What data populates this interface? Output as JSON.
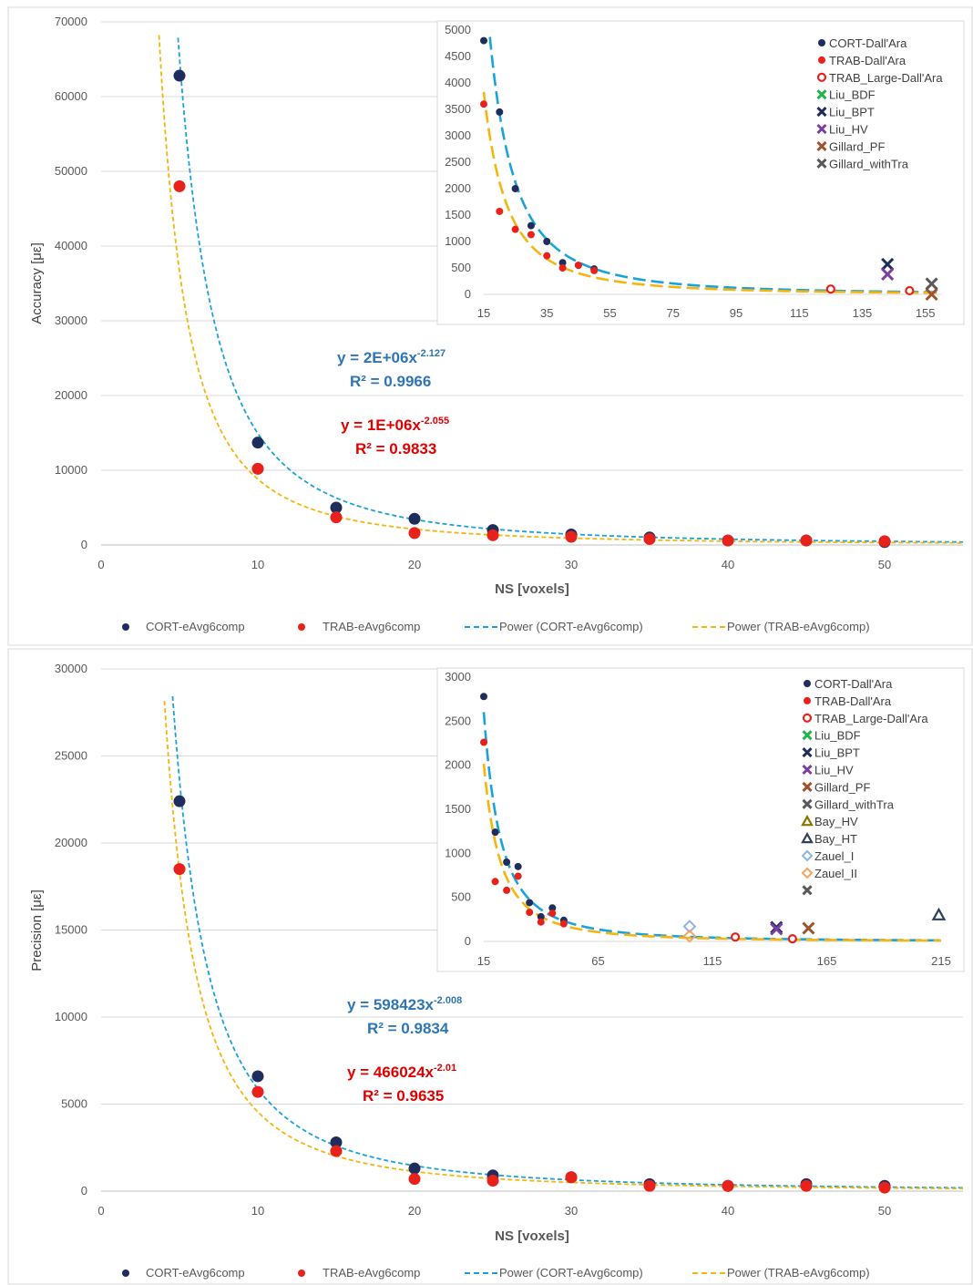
{
  "chart_data": [
    {
      "type": "scatter",
      "xlabel": "NS [voxels]",
      "ylabel": "Accuracy [με]",
      "xlim": [
        0,
        55
      ],
      "ylim": [
        0,
        70000
      ],
      "xticks": [
        0,
        10,
        20,
        30,
        40,
        50
      ],
      "yticks": [
        0,
        10000,
        20000,
        30000,
        40000,
        50000,
        60000,
        70000
      ],
      "grid": true,
      "legend_position": "bottom",
      "series": [
        {
          "name": "CORT-eAvg6comp",
          "color": "#1f2d5c",
          "marker": "circle",
          "x": [
            5,
            10,
            15,
            20,
            25,
            30,
            35,
            40,
            45,
            50
          ],
          "y": [
            62800,
            13700,
            5000,
            3500,
            2000,
            1400,
            1000,
            600,
            600,
            400
          ]
        },
        {
          "name": "TRAB-eAvg6comp",
          "color": "#e8221b",
          "marker": "circle",
          "x": [
            5,
            10,
            15,
            20,
            25,
            30,
            35,
            40,
            45,
            50
          ],
          "y": [
            48000,
            10200,
            3700,
            1600,
            1300,
            1100,
            800,
            600,
            600,
            500
          ]
        }
      ],
      "trendlines": [
        {
          "name": "Power (CORT-eAvg6comp)",
          "color": "#1aa3d9",
          "a": 2000000,
          "b": -2.127
        },
        {
          "name": "Power (TRAB-eAvg6comp)",
          "color": "#f5b50f",
          "a": 1000000,
          "b": -2.055
        }
      ],
      "equations": [
        {
          "line1": "y = 2E+06x",
          "exp": "-2.127",
          "line2": "R² = 0.9966",
          "color": "#2e75b6"
        },
        {
          "line1": "y = 1E+06x",
          "exp": "-2.055",
          "line2": "R² = 0.9833",
          "color": "#e00000"
        }
      ],
      "legend": [
        "CORT-eAvg6comp",
        "TRAB-eAvg6comp",
        "Power (CORT-eAvg6comp)",
        "Power (TRAB-eAvg6comp)"
      ],
      "inset": {
        "xlim": [
          15,
          160
        ],
        "ylim": [
          0,
          5000
        ],
        "xticks": [
          15,
          35,
          55,
          75,
          95,
          115,
          135,
          155
        ],
        "yticks": [
          0,
          500,
          1000,
          1500,
          2000,
          2500,
          3000,
          3500,
          4000,
          4500,
          5000
        ],
        "series": [
          {
            "name": "CORT-Dall'Ara",
            "color": "#1f2d5c",
            "marker": "dot",
            "x": [
              15,
              20,
              25,
              30,
              35,
              40,
              45,
              50
            ],
            "y": [
              4800,
              3450,
              2000,
              1300,
              1000,
              600,
              550,
              480
            ]
          },
          {
            "name": "TRAB-Dall'Ara",
            "color": "#e8221b",
            "marker": "dot",
            "x": [
              15,
              20,
              25,
              30,
              35,
              40,
              45,
              50
            ],
            "y": [
              3600,
              1570,
              1230,
              1130,
              730,
              500,
              550,
              450
            ]
          },
          {
            "name": "TRAB_Large-Dall'Ara",
            "color": "#e8221b",
            "marker": "ring",
            "x": [
              125,
              150
            ],
            "y": [
              100,
              70
            ]
          },
          {
            "name": "Liu_BDF",
            "color": "#22b34a",
            "marker": "x",
            "x": [],
            "y": []
          },
          {
            "name": "Liu_BPT",
            "color": "#1f2d5c",
            "marker": "x",
            "x": [
              143
            ],
            "y": [
              570
            ]
          },
          {
            "name": "Liu_HV",
            "color": "#7b3fa0",
            "marker": "x",
            "x": [
              143
            ],
            "y": [
              380
            ]
          },
          {
            "name": "Gillard_PF",
            "color": "#a0522d",
            "marker": "x",
            "x": [
              157
            ],
            "y": [
              0
            ]
          },
          {
            "name": "Gillard_withTra",
            "color": "#595959",
            "marker": "x",
            "x": [
              157
            ],
            "y": [
              200
            ]
          }
        ],
        "trendlines": [
          {
            "color": "#1aa3d9",
            "a": 2000000,
            "b": -2.127
          },
          {
            "color": "#f5b50f",
            "a": 1000000,
            "b": -2.055
          }
        ]
      }
    },
    {
      "type": "scatter",
      "xlabel": "NS [voxels]",
      "ylabel": "Precision [με]",
      "xlim": [
        0,
        55
      ],
      "ylim": [
        0,
        30000
      ],
      "xticks": [
        0,
        10,
        20,
        30,
        40,
        50
      ],
      "yticks": [
        0,
        5000,
        10000,
        15000,
        20000,
        25000,
        30000
      ],
      "grid": true,
      "legend_position": "bottom",
      "series": [
        {
          "name": "CORT-eAvg6comp",
          "color": "#1f2d5c",
          "marker": "circle",
          "x": [
            5,
            10,
            15,
            20,
            25,
            30,
            35,
            40,
            45,
            50
          ],
          "y": [
            22400,
            6600,
            2800,
            1300,
            900,
            800,
            400,
            300,
            400,
            300
          ]
        },
        {
          "name": "TRAB-eAvg6comp",
          "color": "#e8221b",
          "marker": "circle",
          "x": [
            5,
            10,
            15,
            20,
            25,
            30,
            35,
            40,
            45,
            50
          ],
          "y": [
            18500,
            5700,
            2300,
            700,
            600,
            800,
            300,
            300,
            300,
            200
          ]
        }
      ],
      "trendlines": [
        {
          "name": "Power (CORT-eAvg6comp)",
          "color": "#1aa3d9",
          "a": 598423,
          "b": -2.008
        },
        {
          "name": "Power (TRAB-eAvg6comp)",
          "color": "#f5b50f",
          "a": 466024,
          "b": -2.01
        }
      ],
      "equations": [
        {
          "line1": "y = 598423x",
          "exp": "-2.008",
          "line2": "R² = 0.9834",
          "color": "#2e75b6"
        },
        {
          "line1": "y = 466024x",
          "exp": "-2.01",
          "line2": "R² = 0.9635",
          "color": "#e00000"
        }
      ],
      "legend": [
        "CORT-eAvg6comp",
        "TRAB-eAvg6comp",
        "Power (CORT-eAvg6comp)",
        "Power (TRAB-eAvg6comp)"
      ],
      "inset": {
        "xlim": [
          15,
          215
        ],
        "ylim": [
          0,
          3000
        ],
        "xticks": [
          15,
          65,
          115,
          165,
          215
        ],
        "yticks": [
          0,
          500,
          1000,
          1500,
          2000,
          2500,
          3000
        ],
        "series": [
          {
            "name": "CORT-Dall'Ara",
            "color": "#1f2d5c",
            "marker": "dot",
            "x": [
              15,
              20,
              25,
              30,
              35,
              40,
              45,
              50
            ],
            "y": [
              2780,
              1240,
              900,
              850,
              440,
              280,
              380,
              240
            ]
          },
          {
            "name": "TRAB-Dall'Ara",
            "color": "#e8221b",
            "marker": "dot",
            "x": [
              15,
              20,
              25,
              30,
              35,
              40,
              45,
              50
            ],
            "y": [
              2260,
              680,
              580,
              740,
              330,
              220,
              320,
              200
            ]
          },
          {
            "name": "TRAB_Large-Dall'Ara",
            "color": "#e8221b",
            "marker": "ring",
            "x": [
              125,
              150
            ],
            "y": [
              50,
              30
            ]
          },
          {
            "name": "Liu_BDF",
            "color": "#22b34a",
            "marker": "x",
            "x": [],
            "y": []
          },
          {
            "name": "Liu_BPT",
            "color": "#1f2d5c",
            "marker": "x",
            "x": [
              143
            ],
            "y": [
              160
            ]
          },
          {
            "name": "Liu_HV",
            "color": "#7b3fa0",
            "marker": "x",
            "x": [
              143
            ],
            "y": [
              140
            ]
          },
          {
            "name": "Gillard_PF",
            "color": "#a0522d",
            "marker": "x",
            "x": [
              157
            ],
            "y": [
              150
            ]
          },
          {
            "name": "Gillard_withTra",
            "color": "#595959",
            "marker": "x",
            "x": [],
            "y": []
          },
          {
            "name": "Bay_HV",
            "color": "#8b7500",
            "marker": "triangle",
            "x": [],
            "y": []
          },
          {
            "name": "Bay_HT",
            "color": "#2f3f5f",
            "marker": "triangle",
            "x": [
              214
            ],
            "y": [
              300
            ]
          },
          {
            "name": "Zauel_I",
            "color": "#8eb4e3",
            "marker": "diamond",
            "x": [
              105
            ],
            "y": [
              170
            ]
          },
          {
            "name": "Zauel_II",
            "color": "#f4a460",
            "marker": "diamond",
            "x": [
              105
            ],
            "y": [
              60
            ]
          },
          {
            "name": "",
            "color": "#595959",
            "marker": "x",
            "x": [],
            "y": []
          }
        ],
        "trendlines": [
          {
            "color": "#1aa3d9",
            "a": 598423,
            "b": -2.008
          },
          {
            "color": "#f5b50f",
            "a": 466024,
            "b": -2.01
          }
        ]
      }
    }
  ]
}
